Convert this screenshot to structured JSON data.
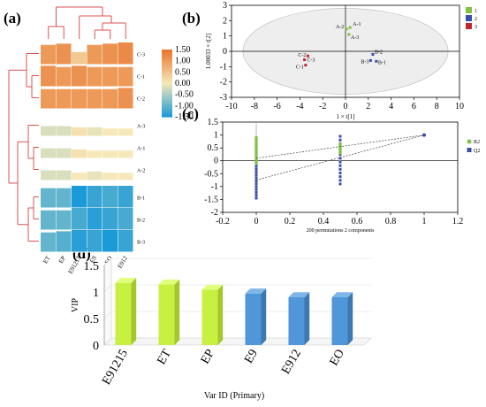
{
  "panels": {
    "a": "(a)",
    "b": "(b)",
    "c": "(c)",
    "d": "(d)"
  },
  "colors": {
    "high": "#e8732a",
    "mid": "#f6e8b8",
    "low": "#1a9ad7",
    "dendro": "#d9534f",
    "green": "#7ec242",
    "blue": "#3a4fa8",
    "red": "#c0282d",
    "vip_high": "#c8f040",
    "vip_low": "#4f97d8"
  },
  "chart_data": [
    {
      "type": "heatmap",
      "panel": "a",
      "rows": [
        "C-3",
        "C-1",
        "C-2",
        "A-3",
        "A-1",
        "A-2",
        "B-1",
        "B-2",
        "B-3"
      ],
      "columns": [
        "ET",
        "EP",
        "E91215",
        "E9",
        "EO",
        "E912"
      ],
      "values": [
        [
          1.0,
          1.1,
          0.4,
          1.0,
          1.1,
          1.2
        ],
        [
          1.1,
          1.0,
          1.1,
          1.0,
          1.0,
          1.0
        ],
        [
          1.0,
          1.0,
          1.0,
          1.0,
          1.0,
          1.1
        ],
        [
          -0.2,
          -0.2,
          0.1,
          -0.1,
          0.0,
          0.0
        ],
        [
          -0.2,
          -0.2,
          0.1,
          0.0,
          0.0,
          0.0
        ],
        [
          -0.2,
          -0.2,
          0.0,
          -0.1,
          0.0,
          0.0
        ],
        [
          -1.0,
          -1.0,
          -1.5,
          -1.3,
          -1.2,
          -1.3
        ],
        [
          -1.0,
          -1.0,
          -1.2,
          -1.4,
          -1.3,
          -1.2
        ],
        [
          -1.0,
          -1.1,
          -1.4,
          -1.3,
          -1.5,
          -1.3
        ]
      ],
      "colorbar": {
        "ticks": [
          "1.50",
          "1.00",
          "0.50",
          "0.00",
          "-0.50",
          "-1.00",
          "-1.50"
        ],
        "range": [
          -1.5,
          1.5
        ]
      }
    },
    {
      "type": "scatter",
      "panel": "b",
      "xlabel": "1 × t[1]",
      "ylabel": "1.00033 × t[2]",
      "xlim": [
        -10,
        10
      ],
      "ylim": [
        -3,
        3
      ],
      "xticks": [
        "-10",
        "-8",
        "-6",
        "-4",
        "-2",
        "0",
        "2",
        "4",
        "6",
        "8",
        "10"
      ],
      "yticks": [
        "3",
        "2",
        "1",
        "0",
        "-1",
        "-2",
        "-3"
      ],
      "legend": [
        "1",
        "2",
        "3"
      ],
      "points": [
        {
          "label": "A-1",
          "x": 0.4,
          "y": 1.55,
          "group": "1"
        },
        {
          "label": "A-2",
          "x": 0.1,
          "y": 1.45,
          "group": "1"
        },
        {
          "label": "A-3",
          "x": 0.3,
          "y": 1.1,
          "group": "1"
        },
        {
          "label": "B-2",
          "x": 2.4,
          "y": -0.2,
          "group": "2"
        },
        {
          "label": "B-3",
          "x": 2.2,
          "y": -0.6,
          "group": "2"
        },
        {
          "label": "B-1",
          "x": 2.7,
          "y": -0.65,
          "group": "2"
        },
        {
          "label": "C-2",
          "x": -3.3,
          "y": -0.3,
          "group": "3"
        },
        {
          "label": "C-3",
          "x": -3.6,
          "y": -0.55,
          "group": "3"
        },
        {
          "label": "C-1",
          "x": -3.5,
          "y": -0.9,
          "group": "3"
        }
      ]
    },
    {
      "type": "scatter",
      "panel": "c",
      "xlabel": "200 permutations 2 components",
      "xlim": [
        -0.2,
        1.2
      ],
      "ylim": [
        -2,
        1.5
      ],
      "xticks": [
        "-0.2",
        "0",
        "0.2",
        "0.4",
        "0.6",
        "0.8",
        "1",
        "1.2"
      ],
      "yticks": [
        "1.5",
        "1",
        "0.5",
        "0",
        "-0.5",
        "-1",
        "-1.5",
        "-2"
      ],
      "legend": [
        "R2",
        "Q2"
      ],
      "r2_line": [
        [
          0,
          0.1
        ],
        [
          1,
          1.0
        ]
      ],
      "q2_line": [
        [
          0,
          -0.75
        ],
        [
          1,
          1.0
        ]
      ],
      "r2_points": {
        "x0": 0,
        "y_range": [
          -0.1,
          0.9
        ],
        "x1": 0.5,
        "y1_range": [
          0.3,
          0.65
        ]
      },
      "q2_points": {
        "x0": 0,
        "y_range": [
          -1.45,
          0.45
        ],
        "x1": 0.5,
        "y1_range": [
          -0.9,
          0.95
        ],
        "final": [
          1,
          1.0
        ]
      }
    },
    {
      "type": "bar",
      "panel": "d",
      "categories": [
        "E91215",
        "ET",
        "EP",
        "E9",
        "E912",
        "EO"
      ],
      "values": [
        1.17,
        1.14,
        1.04,
        0.97,
        0.9,
        0.9
      ],
      "xlabel": "Var ID (Primary)",
      "ylabel": "VIP",
      "ylim": [
        0,
        1.5
      ],
      "yticks": [
        "0",
        "0.5",
        "1",
        "1.5"
      ],
      "bar_colors": [
        "#c8f040",
        "#c8f040",
        "#c8f040",
        "#4f97d8",
        "#4f97d8",
        "#4f97d8"
      ]
    }
  ]
}
